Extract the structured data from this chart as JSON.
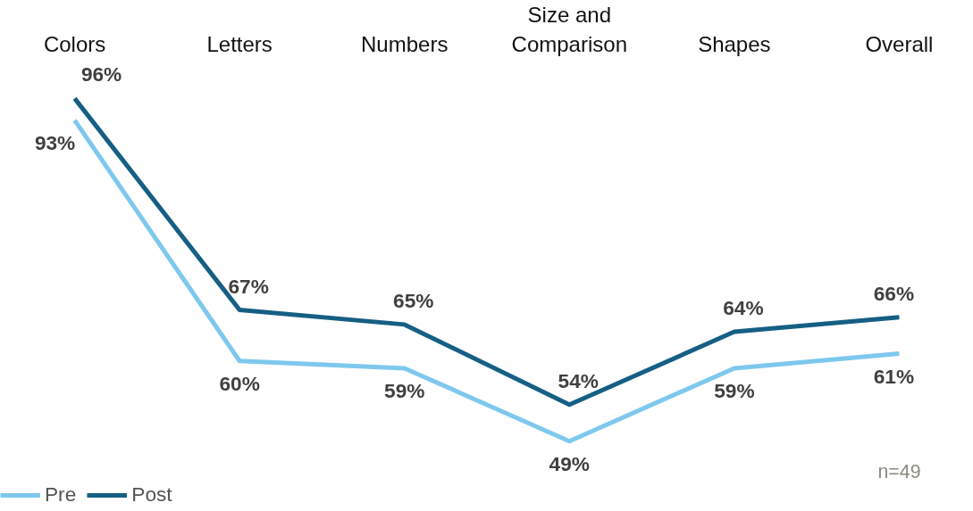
{
  "chart_data": {
    "type": "line",
    "categories": [
      "Colors",
      "Letters",
      "Numbers",
      "Size and Comparison",
      "Shapes",
      "Overall"
    ],
    "series": [
      {
        "name": "Pre",
        "color": "#7ec8ee",
        "values": [
          93,
          60,
          59,
          49,
          59,
          61
        ],
        "value_labels": [
          "93%",
          "60%",
          "59%",
          "49%",
          "59%",
          "61%"
        ]
      },
      {
        "name": "Post",
        "color": "#165f84",
        "values": [
          96,
          67,
          65,
          54,
          64,
          66
        ],
        "value_labels": [
          "96%",
          "67%",
          "65%",
          "54%",
          "64%",
          "66%"
        ]
      }
    ],
    "legend": "bottom left",
    "grid": false,
    "marker": "none",
    "line_style": "solid",
    "annotations": [
      "n=49"
    ]
  }
}
